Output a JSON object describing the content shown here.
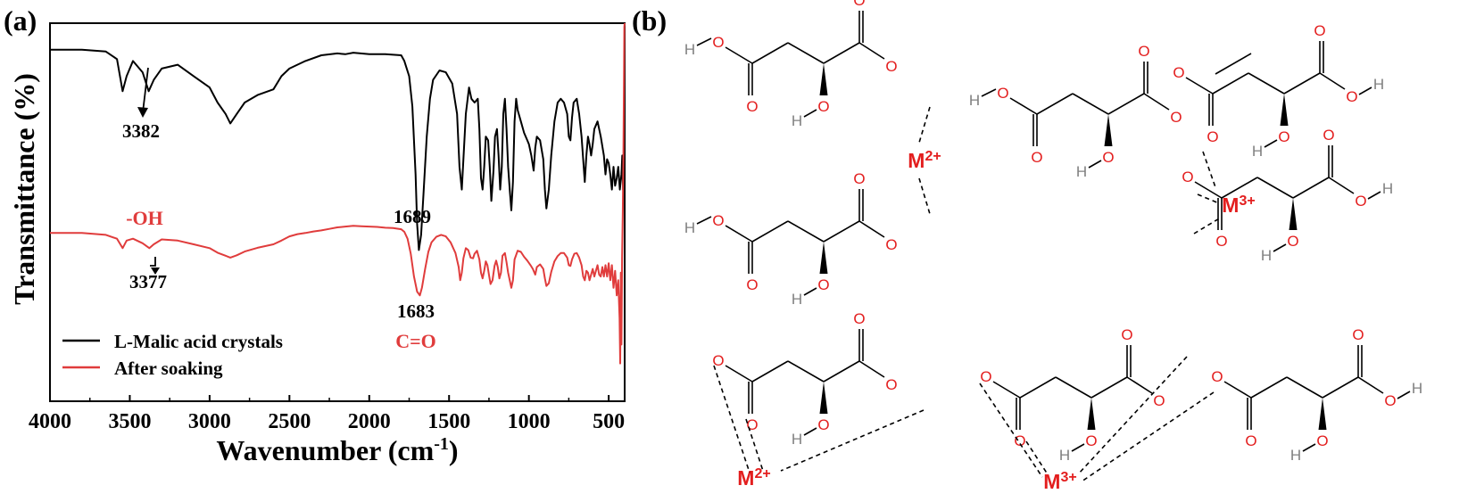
{
  "panels": {
    "a_label": "(a)",
    "b_label": "(b)"
  },
  "chart_data": {
    "type": "line",
    "title": "",
    "xlabel_main": "Wavenumber (cm",
    "xlabel_sup": "-1",
    "xlabel_close": ")",
    "ylabel": "Transmittance (%)",
    "xlim": [
      4000,
      400
    ],
    "x_reversed": true,
    "y_ticks_shown": false,
    "xticks": [
      {
        "value": 4000,
        "label": "4000"
      },
      {
        "value": 3500,
        "label": "3500"
      },
      {
        "value": 3000,
        "label": "3000"
      },
      {
        "value": 2500,
        "label": "2500"
      },
      {
        "value": 2000,
        "label": "2000"
      },
      {
        "value": 1500,
        "label": "1500"
      },
      {
        "value": 1000,
        "label": "1000"
      },
      {
        "value": 500,
        "label": "500"
      }
    ],
    "legend": {
      "position": "bottom-left",
      "entries": [
        {
          "name": "L-Malic acid crystals",
          "color": "#000000"
        },
        {
          "name": "After soaking",
          "color": "#e03c3c"
        }
      ]
    },
    "series": [
      {
        "name": "L-Malic acid crystals",
        "color": "#000000",
        "points": [
          [
            4000,
            0.93
          ],
          [
            3800,
            0.93
          ],
          [
            3650,
            0.925
          ],
          [
            3580,
            0.905
          ],
          [
            3545,
            0.82
          ],
          [
            3520,
            0.86
          ],
          [
            3480,
            0.9
          ],
          [
            3420,
            0.87
          ],
          [
            3382,
            0.82
          ],
          [
            3350,
            0.85
          ],
          [
            3300,
            0.88
          ],
          [
            3200,
            0.89
          ],
          [
            3100,
            0.86
          ],
          [
            3000,
            0.83
          ],
          [
            2950,
            0.79
          ],
          [
            2900,
            0.76
          ],
          [
            2870,
            0.735
          ],
          [
            2830,
            0.76
          ],
          [
            2780,
            0.79
          ],
          [
            2700,
            0.81
          ],
          [
            2600,
            0.825
          ],
          [
            2550,
            0.86
          ],
          [
            2500,
            0.88
          ],
          [
            2400,
            0.9
          ],
          [
            2300,
            0.915
          ],
          [
            2200,
            0.92
          ],
          [
            2150,
            0.918
          ],
          [
            2100,
            0.922
          ],
          [
            2000,
            0.918
          ],
          [
            1900,
            0.918
          ],
          [
            1800,
            0.915
          ],
          [
            1780,
            0.9
          ],
          [
            1750,
            0.86
          ],
          [
            1730,
            0.78
          ],
          [
            1710,
            0.6
          ],
          [
            1700,
            0.47
          ],
          [
            1689,
            0.4
          ],
          [
            1675,
            0.44
          ],
          [
            1660,
            0.55
          ],
          [
            1640,
            0.7
          ],
          [
            1620,
            0.8
          ],
          [
            1600,
            0.85
          ],
          [
            1560,
            0.875
          ],
          [
            1520,
            0.87
          ],
          [
            1480,
            0.84
          ],
          [
            1450,
            0.76
          ],
          [
            1435,
            0.62
          ],
          [
            1420,
            0.56
          ],
          [
            1410,
            0.64
          ],
          [
            1395,
            0.76
          ],
          [
            1375,
            0.83
          ],
          [
            1360,
            0.8
          ],
          [
            1340,
            0.79
          ],
          [
            1320,
            0.8
          ],
          [
            1310,
            0.72
          ],
          [
            1300,
            0.59
          ],
          [
            1290,
            0.56
          ],
          [
            1280,
            0.62
          ],
          [
            1270,
            0.7
          ],
          [
            1255,
            0.69
          ],
          [
            1245,
            0.62
          ],
          [
            1235,
            0.53
          ],
          [
            1222,
            0.61
          ],
          [
            1212,
            0.7
          ],
          [
            1200,
            0.72
          ],
          [
            1190,
            0.65
          ],
          [
            1180,
            0.56
          ],
          [
            1170,
            0.62
          ],
          [
            1160,
            0.76
          ],
          [
            1150,
            0.8
          ],
          [
            1140,
            0.72
          ],
          [
            1130,
            0.62
          ],
          [
            1120,
            0.56
          ],
          [
            1110,
            0.505
          ],
          [
            1100,
            0.58
          ],
          [
            1090,
            0.74
          ],
          [
            1080,
            0.8
          ],
          [
            1070,
            0.77
          ],
          [
            1050,
            0.74
          ],
          [
            1030,
            0.71
          ],
          [
            1010,
            0.69
          ],
          [
            1000,
            0.68
          ],
          [
            985,
            0.65
          ],
          [
            970,
            0.61
          ],
          [
            960,
            0.67
          ],
          [
            950,
            0.7
          ],
          [
            930,
            0.69
          ],
          [
            910,
            0.64
          ],
          [
            900,
            0.56
          ],
          [
            890,
            0.51
          ],
          [
            875,
            0.56
          ],
          [
            860,
            0.65
          ],
          [
            840,
            0.74
          ],
          [
            820,
            0.79
          ],
          [
            800,
            0.8
          ],
          [
            780,
            0.79
          ],
          [
            760,
            0.76
          ],
          [
            750,
            0.7
          ],
          [
            740,
            0.69
          ],
          [
            730,
            0.75
          ],
          [
            720,
            0.79
          ],
          [
            700,
            0.8
          ],
          [
            685,
            0.76
          ],
          [
            670,
            0.7
          ],
          [
            660,
            0.64
          ],
          [
            650,
            0.58
          ],
          [
            640,
            0.65
          ],
          [
            630,
            0.7
          ],
          [
            620,
            0.68
          ],
          [
            610,
            0.65
          ],
          [
            600,
            0.68
          ],
          [
            590,
            0.72
          ],
          [
            570,
            0.74
          ],
          [
            550,
            0.7
          ],
          [
            530,
            0.65
          ],
          [
            520,
            0.6
          ],
          [
            510,
            0.64
          ],
          [
            500,
            0.63
          ],
          [
            490,
            0.6
          ],
          [
            480,
            0.56
          ],
          [
            470,
            0.62
          ],
          [
            460,
            0.57
          ],
          [
            450,
            0.59
          ],
          [
            440,
            0.62
          ],
          [
            430,
            0.56
          ],
          [
            420,
            0.6
          ],
          [
            415,
            0.65
          ],
          [
            410,
            0.56
          ],
          [
            405,
            0.62
          ],
          [
            400,
            0.59
          ]
        ]
      },
      {
        "name": "After soaking",
        "color": "#e03c3c",
        "points": [
          [
            4000,
            0.445
          ],
          [
            3800,
            0.445
          ],
          [
            3650,
            0.44
          ],
          [
            3580,
            0.43
          ],
          [
            3545,
            0.405
          ],
          [
            3520,
            0.425
          ],
          [
            3480,
            0.43
          ],
          [
            3420,
            0.418
          ],
          [
            3377,
            0.405
          ],
          [
            3350,
            0.415
          ],
          [
            3300,
            0.428
          ],
          [
            3200,
            0.425
          ],
          [
            3100,
            0.415
          ],
          [
            3000,
            0.405
          ],
          [
            2950,
            0.393
          ],
          [
            2900,
            0.385
          ],
          [
            2870,
            0.38
          ],
          [
            2830,
            0.386
          ],
          [
            2780,
            0.396
          ],
          [
            2700,
            0.406
          ],
          [
            2600,
            0.415
          ],
          [
            2550,
            0.425
          ],
          [
            2500,
            0.436
          ],
          [
            2450,
            0.442
          ],
          [
            2400,
            0.445
          ],
          [
            2350,
            0.449
          ],
          [
            2300,
            0.452
          ],
          [
            2250,
            0.456
          ],
          [
            2200,
            0.46
          ],
          [
            2150,
            0.462
          ],
          [
            2100,
            0.464
          ],
          [
            2050,
            0.463
          ],
          [
            2000,
            0.462
          ],
          [
            1950,
            0.461
          ],
          [
            1900,
            0.459
          ],
          [
            1850,
            0.458
          ],
          [
            1800,
            0.455
          ],
          [
            1780,
            0.448
          ],
          [
            1760,
            0.43
          ],
          [
            1740,
            0.39
          ],
          [
            1720,
            0.33
          ],
          [
            1700,
            0.29
          ],
          [
            1683,
            0.28
          ],
          [
            1670,
            0.3
          ],
          [
            1650,
            0.35
          ],
          [
            1630,
            0.395
          ],
          [
            1610,
            0.42
          ],
          [
            1580,
            0.435
          ],
          [
            1550,
            0.44
          ],
          [
            1520,
            0.436
          ],
          [
            1490,
            0.42
          ],
          [
            1460,
            0.392
          ],
          [
            1440,
            0.355
          ],
          [
            1430,
            0.32
          ],
          [
            1420,
            0.34
          ],
          [
            1410,
            0.378
          ],
          [
            1395,
            0.405
          ],
          [
            1380,
            0.4
          ],
          [
            1365,
            0.38
          ],
          [
            1350,
            0.378
          ],
          [
            1340,
            0.39
          ],
          [
            1325,
            0.398
          ],
          [
            1310,
            0.375
          ],
          [
            1300,
            0.34
          ],
          [
            1290,
            0.325
          ],
          [
            1280,
            0.345
          ],
          [
            1270,
            0.37
          ],
          [
            1260,
            0.36
          ],
          [
            1250,
            0.335
          ],
          [
            1240,
            0.31
          ],
          [
            1228,
            0.32
          ],
          [
            1215,
            0.358
          ],
          [
            1205,
            0.372
          ],
          [
            1195,
            0.355
          ],
          [
            1185,
            0.325
          ],
          [
            1175,
            0.34
          ],
          [
            1165,
            0.385
          ],
          [
            1150,
            0.392
          ],
          [
            1140,
            0.368
          ],
          [
            1130,
            0.34
          ],
          [
            1120,
            0.32
          ],
          [
            1110,
            0.3
          ],
          [
            1100,
            0.32
          ],
          [
            1090,
            0.375
          ],
          [
            1070,
            0.398
          ],
          [
            1050,
            0.395
          ],
          [
            1030,
            0.382
          ],
          [
            1010,
            0.372
          ],
          [
            990,
            0.36
          ],
          [
            975,
            0.35
          ],
          [
            960,
            0.335
          ],
          [
            950,
            0.355
          ],
          [
            930,
            0.362
          ],
          [
            910,
            0.35
          ],
          [
            900,
            0.325
          ],
          [
            890,
            0.305
          ],
          [
            875,
            0.312
          ],
          [
            860,
            0.342
          ],
          [
            840,
            0.37
          ],
          [
            820,
            0.384
          ],
          [
            800,
            0.392
          ],
          [
            780,
            0.392
          ],
          [
            760,
            0.38
          ],
          [
            750,
            0.36
          ],
          [
            740,
            0.358
          ],
          [
            730,
            0.375
          ],
          [
            715,
            0.39
          ],
          [
            700,
            0.392
          ],
          [
            685,
            0.38
          ],
          [
            670,
            0.36
          ],
          [
            660,
            0.33
          ],
          [
            650,
            0.32
          ],
          [
            640,
            0.345
          ],
          [
            630,
            0.34
          ],
          [
            620,
            0.32
          ],
          [
            610,
            0.335
          ],
          [
            600,
            0.35
          ],
          [
            590,
            0.33
          ],
          [
            580,
            0.345
          ],
          [
            570,
            0.36
          ],
          [
            560,
            0.335
          ],
          [
            550,
            0.33
          ],
          [
            540,
            0.355
          ],
          [
            530,
            0.33
          ],
          [
            520,
            0.36
          ],
          [
            510,
            0.33
          ],
          [
            500,
            0.365
          ],
          [
            490,
            0.32
          ],
          [
            480,
            0.36
          ],
          [
            470,
            0.3
          ],
          [
            460,
            0.345
          ],
          [
            450,
            0.28
          ],
          [
            440,
            0.32
          ],
          [
            432,
            0.22
          ],
          [
            428,
            0.1
          ],
          [
            424,
            0.34
          ],
          [
            420,
            0.15
          ],
          [
            416,
            0.38
          ],
          [
            412,
            0.5
          ],
          [
            408,
            0.65
          ],
          [
            404,
            0.88
          ],
          [
            402,
            0.99
          ],
          [
            400,
            1.0
          ]
        ]
      }
    ],
    "annotations": [
      {
        "text": "3382",
        "x": 3382,
        "color": "#000000",
        "arrow": true
      },
      {
        "text": "1689",
        "x": 1689,
        "color": "#000000"
      },
      {
        "text": "-OH",
        "x": 3550,
        "color": "#e03c3c"
      },
      {
        "text": "3377",
        "x": 3377,
        "color": "#000000",
        "arrow": true
      },
      {
        "text": "1683",
        "x": 1683,
        "color": "#000000"
      },
      {
        "text": "C=O",
        "x": 1683,
        "color": "#e03c3c"
      }
    ]
  },
  "panel_b": {
    "atom_O": "O",
    "atom_H": "H",
    "metal_base": "M",
    "metal_2_charge": "2+",
    "metal_3_charge": "3+",
    "colors": {
      "oxygen": "#e31e1e",
      "hydrogen": "#808080",
      "bond": "#000000"
    }
  }
}
